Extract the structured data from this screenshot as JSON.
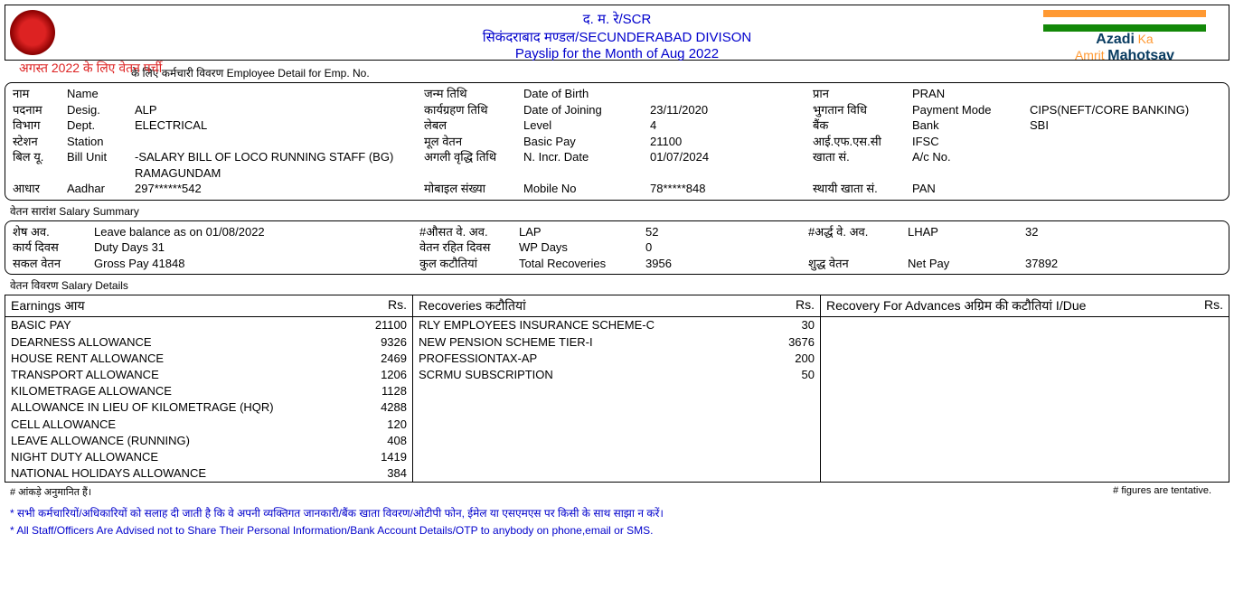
{
  "header": {
    "left_text": "अगस्त 2022  के लिए वेतन पर्ची",
    "center1": "द. म. रे/SCR",
    "center2": "सिकंदराबाद मण्डल/SECUNDERABAD DIVISON",
    "center3": "Payslip for the Month of Aug 2022",
    "azadi": "Azadi",
    "azadi_ka": "Ka",
    "amrit": "Amrit",
    "mahotsav": "Mahotsav"
  },
  "emp_section_title": "के लिए कर्मचारी विवरण        Employee Detail for Emp. No.",
  "emp": {
    "r1": {
      "h1": "नाम",
      "h2": "Name",
      "v": "",
      "h3": "जन्म तिथि",
      "h4": "Date of Birth",
      "v2": "",
      "h5": "प्रान",
      "h6": "PRAN",
      "v3": ""
    },
    "r2": {
      "h1": "पदनाम",
      "h2": "Desig.",
      "v": "ALP",
      "h3": "कार्यग्रहण  तिथि",
      "h4": "Date of Joining",
      "v2": "23/11/2020",
      "h5": "भुगतान विधि",
      "h6": "Payment Mode",
      "v3": "CIPS(NEFT/CORE BANKING)"
    },
    "r3": {
      "h1": "विभाग",
      "h2": "Dept.",
      "v": "ELECTRICAL",
      "h3": "लेबल",
      "h4": "Level",
      "v2": "4",
      "h5": "बैंक",
      "h6": "Bank",
      "v3": "SBI"
    },
    "r4": {
      "h1": "स्टेशन",
      "h2": "Station",
      "v": "",
      "h3": "मूल वेतन",
      "h4": "Basic Pay",
      "v2": "21100",
      "h5": "आई.एफ.एस.सी",
      "h6": "IFSC",
      "v3": ""
    },
    "r5": {
      "h1": "बिल यू.",
      "h2": "Bill Unit",
      "v": "            -SALARY BILL OF LOCO RUNNING STAFF (BG) RAMAGUNDAM",
      "h3": "अगली वृद्धि तिथि",
      "h4": "N. Incr. Date",
      "v2": "01/07/2024",
      "h5": "खाता सं.",
      "h6": "A/c No.",
      "v3": ""
    },
    "r6": {
      "h1": "आधार",
      "h2": "Aadhar",
      "v": "297******542",
      "h3": "मोबाइल संख्या",
      "h4": "Mobile No",
      "v2": "78*****848",
      "h5": "स्थायी खाता सं.",
      "h6": "PAN",
      "v3": ""
    }
  },
  "summary_title": "वेतन सारांश         Salary Summary",
  "summary": {
    "r1": {
      "h1": "शेष अव.",
      "h2": "Leave balance as on 01/08/2022",
      "h3": "#औसत वे. अव.",
      "h4": "LAP",
      "v2": "52",
      "h5": "#अर्द्ध वे. अव.",
      "h6": "LHAP",
      "v3": "32"
    },
    "r2": {
      "h1": "कार्य दिवस",
      "h2": "Duty Days   31",
      "h3": "वेतन रहित दिवस",
      "h4": "WP Days",
      "v2": "0",
      "h5": "",
      "h6": "",
      "v3": ""
    },
    "r3": {
      "h1": "सकल वेतन",
      "h2": "Gross Pay  41848",
      "h3": "कुल कटौतियां",
      "h4": "Total Recoveries",
      "v2": "3956",
      "h5": "शुद्ध वेतन",
      "h6": "Net Pay",
      "v3": "37892"
    }
  },
  "details_title": "वेतन विवरण          Salary Details",
  "details": {
    "earnings_header": "Earnings आय",
    "recoveries_header": "Recoveries कटौतियां",
    "advances_header": "Recovery For Advances अग्रिम की कटौतियां       I/Due",
    "rs": "Rs.",
    "earnings": [
      {
        "label": "BASIC PAY",
        "amount": "21100"
      },
      {
        "label": "DEARNESS ALLOWANCE",
        "amount": "9326"
      },
      {
        "label": "HOUSE RENT ALLOWANCE",
        "amount": "2469"
      },
      {
        "label": "TRANSPORT ALLOWANCE",
        "amount": "1206"
      },
      {
        "label": "KILOMETRAGE ALLOWANCE",
        "amount": "1128"
      },
      {
        "label": "ALLOWANCE IN LIEU OF KILOMETRAGE (HQR)",
        "amount": "4288"
      },
      {
        "label": "CELL ALLOWANCE",
        "amount": "120"
      },
      {
        "label": "LEAVE ALLOWANCE (RUNNING)",
        "amount": "408"
      },
      {
        "label": "NIGHT DUTY ALLOWANCE",
        "amount": "1419"
      },
      {
        "label": "NATIONAL HOLIDAYS ALLOWANCE",
        "amount": "384"
      }
    ],
    "recoveries": [
      {
        "label": "RLY EMPLOYEES INSURANCE SCHEME-C",
        "amount": "30"
      },
      {
        "label": "NEW PENSION SCHEME TIER-I",
        "amount": "3676"
      },
      {
        "label": "PROFESSIONTAX-AP",
        "amount": "200"
      },
      {
        "label": "SCRMU SUBSCRIPTION",
        "amount": "50"
      }
    ]
  },
  "footnotes": {
    "left": "#  आंकड़े अनुमानित हैं।",
    "right": "#  figures are tentative.",
    "blue1": "*  सभी कर्मचारियों/अधिकारियों को सलाह दी जाती है कि वे अपनी व्यक्तिगत जानकारी/बैंक खाता विवरण/ओटीपी फोन, ईमेल या एसएमएस पर किसी के साथ साझा न करें।",
    "blue2": "*  All Staff/Officers Are Advised not to Share Their Personal Information/Bank Account Details/OTP to anybody on phone,email or SMS."
  }
}
